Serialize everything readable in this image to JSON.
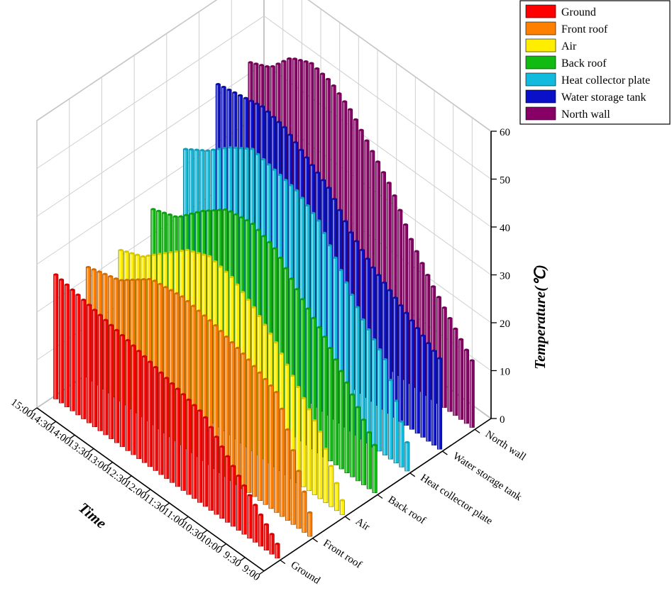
{
  "chart_data": {
    "type": "bar3d",
    "title": "",
    "zlabel": "Temperature(℃)",
    "ylabel": "Time",
    "zlim": [
      0,
      60
    ],
    "z_ticks": [
      "0",
      "10",
      "20",
      "30",
      "40",
      "50",
      "60"
    ],
    "time_ticks": [
      "9:00",
      "9:30",
      "10:00",
      "10:30",
      "11:00",
      "11:30",
      "12:00",
      "12:30",
      "13:00",
      "13:30",
      "14:00",
      "14:30",
      "15:00"
    ],
    "time_samples_per_series": 41,
    "legend_position": "top-right",
    "series": [
      {
        "name": "Ground",
        "color": "#ff0000",
        "values": [
          3,
          19,
          23,
          26
        ]
      },
      {
        "name": "Front roof",
        "color": "#ff7f00",
        "values": [
          5,
          25,
          28,
          30,
          31,
          30,
          25,
          23
        ]
      },
      {
        "name": "Air",
        "color": "#ffee00",
        "values": [
          3,
          14,
          20,
          26,
          30,
          33,
          34,
          32,
          28,
          24,
          22
        ]
      },
      {
        "name": "Back roof",
        "color": "#11bb11",
        "values": [
          10,
          18,
          25,
          30,
          36,
          38,
          37,
          33,
          28,
          26
        ]
      },
      {
        "name": "Heat collector plate",
        "color": "#11bbdd",
        "values": [
          6,
          20,
          25,
          32,
          39,
          42,
          43,
          44,
          41,
          37,
          34
        ]
      },
      {
        "name": "Water storage tank",
        "color": "#0a10c8",
        "values": [
          19,
          22,
          25,
          28,
          32,
          38,
          41,
          44,
          45,
          44,
          43
        ]
      },
      {
        "name": "North wall",
        "color": "#880066",
        "values": [
          14,
          19,
          24,
          30,
          38,
          43,
          48,
          51,
          52,
          50,
          45,
          43
        ]
      }
    ]
  }
}
